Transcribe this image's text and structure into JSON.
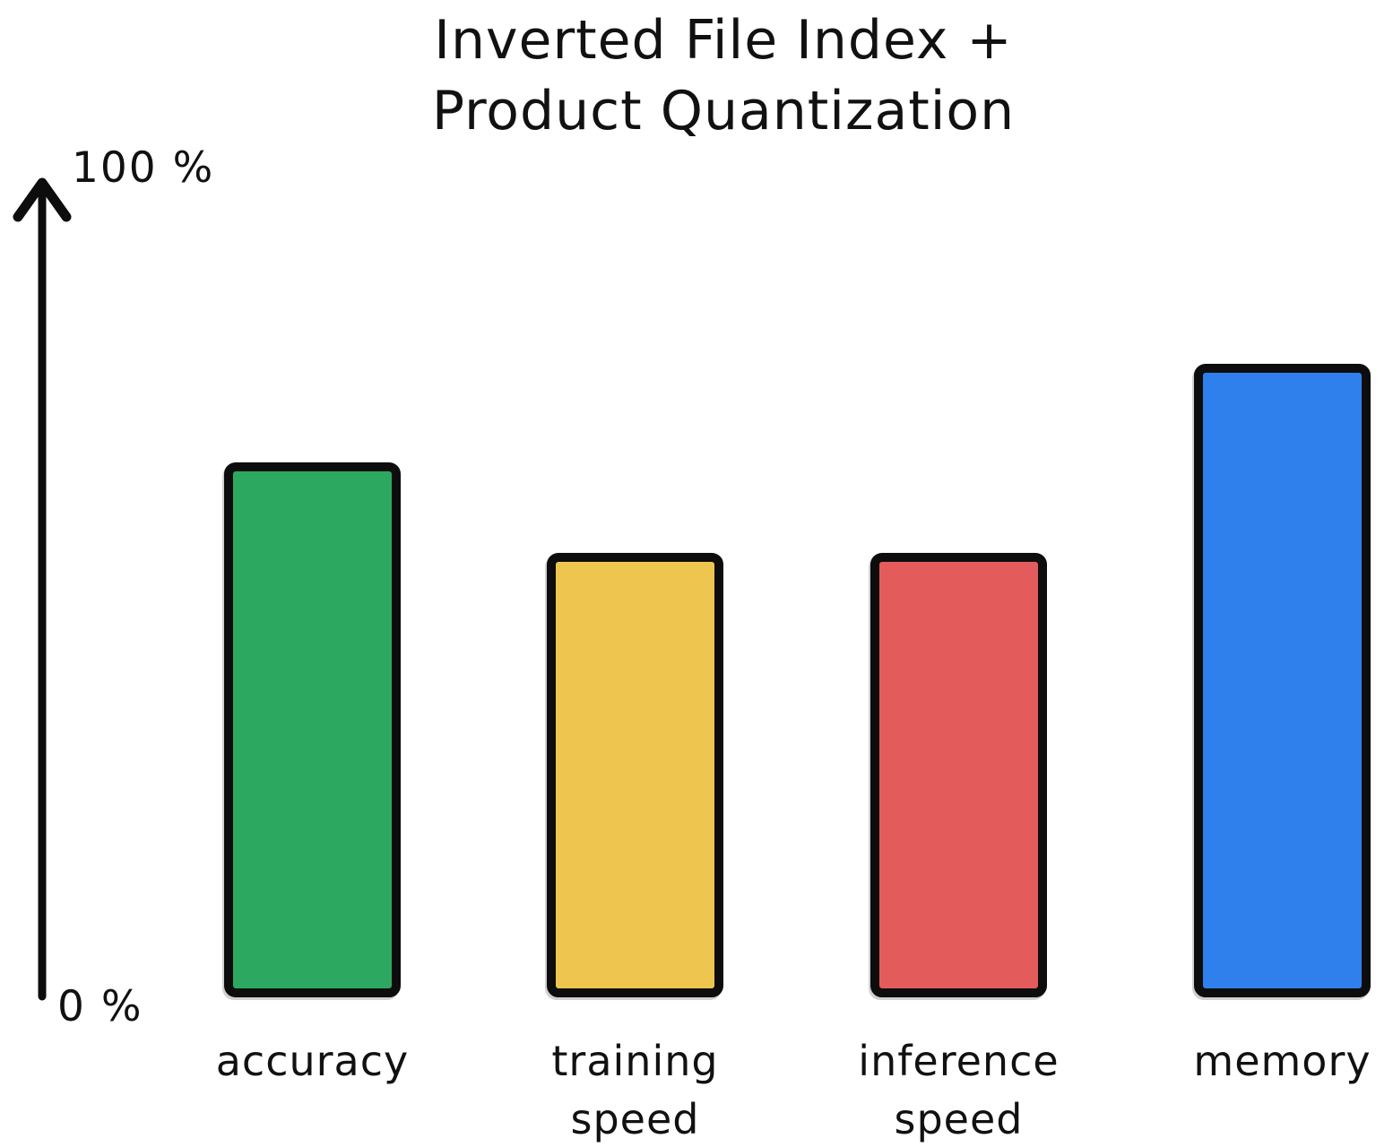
{
  "title": "Inverted File Index +\nProduct Quantization",
  "y_axis": {
    "top_label": "100 %",
    "bottom_label": "0 %"
  },
  "chart_data": {
    "type": "bar",
    "title": "Inverted File Index + Product Quantization",
    "categories": [
      "accuracy",
      "training speed",
      "inference speed",
      "memory"
    ],
    "values": [
      65,
      54,
      54,
      77
    ],
    "colors": [
      "#2DA860",
      "#EEC64F",
      "#E45B5B",
      "#2F80ED"
    ],
    "xlabel": "",
    "ylabel": "%",
    "ylim": [
      0,
      100
    ],
    "y_tick_labels": [
      "0 %",
      "100 %"
    ],
    "legend": false,
    "grid": false,
    "style": "hand-drawn, thick black outlines, rounded corners"
  }
}
